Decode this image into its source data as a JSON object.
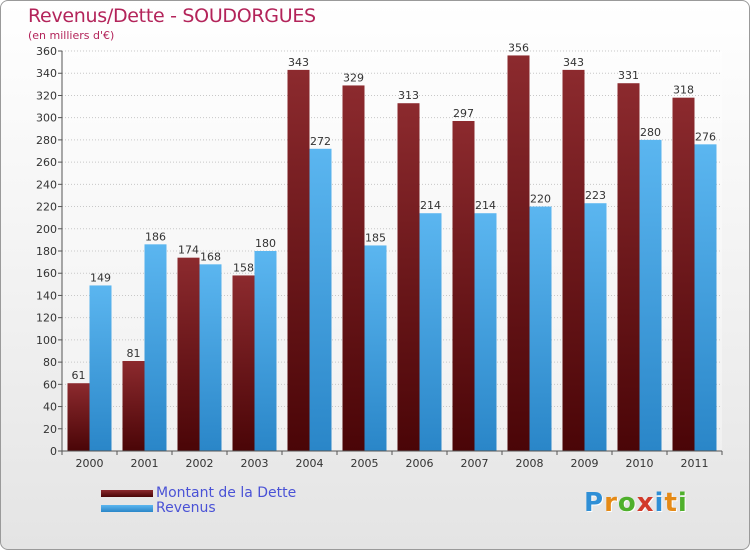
{
  "title": "Revenus/Dette - SOUDORGUES",
  "subtitle": "(en milliers d'€)",
  "colors": {
    "dette": "#6e0f13",
    "revenus": "#3b9fe3",
    "title": "#b3245a",
    "legend_text": "#4a52d6"
  },
  "chart_data": {
    "type": "bar",
    "title": "Revenus/Dette - SOUDORGUES",
    "ylabel": "(en milliers d'€)",
    "categories": [
      "2000",
      "2001",
      "2002",
      "2003",
      "2004",
      "2005",
      "2006",
      "2007",
      "2008",
      "2009",
      "2010",
      "2011"
    ],
    "series": [
      {
        "name": "Montant de la Dette",
        "values": [
          61,
          81,
          174,
          158,
          343,
          329,
          313,
          297,
          356,
          343,
          331,
          318
        ]
      },
      {
        "name": "Revenus",
        "values": [
          149,
          186,
          168,
          180,
          272,
          185,
          214,
          214,
          220,
          223,
          280,
          276
        ]
      }
    ],
    "ylim": [
      0,
      360
    ],
    "yticks": [
      0,
      20,
      40,
      60,
      80,
      100,
      120,
      140,
      160,
      180,
      200,
      220,
      240,
      260,
      280,
      300,
      320,
      340,
      360
    ],
    "grid": true,
    "legend_position": "bottom-left"
  },
  "legend": {
    "items": [
      {
        "label": "Montant de la Dette"
      },
      {
        "label": "Revenus"
      }
    ]
  },
  "logo": {
    "letters": [
      "P",
      "r",
      "o",
      "x",
      "i",
      "t",
      "i"
    ],
    "letter_colors": [
      "#2f8fd6",
      "#e58a16",
      "#4fb02c",
      "#d23a2a",
      "#2f8fd6",
      "#e58a16",
      "#4fb02c"
    ]
  }
}
